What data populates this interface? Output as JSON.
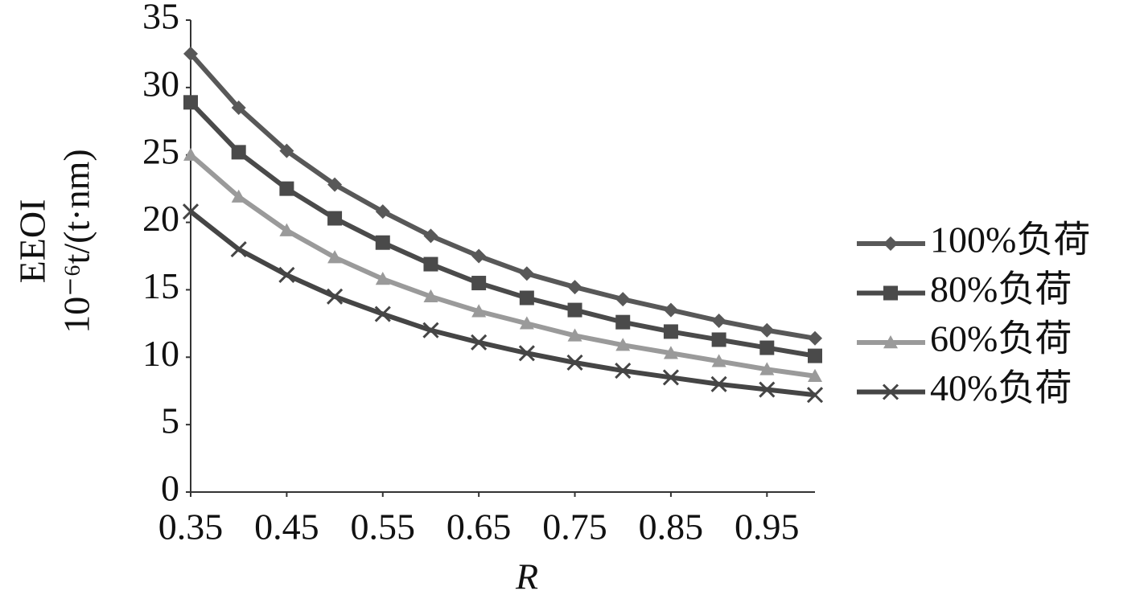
{
  "chart_data": {
    "type": "line",
    "y_label": "EEOI",
    "y_unit": "10⁻⁶t/(t·nm)",
    "x_label": "R",
    "x": [
      0.35,
      0.4,
      0.45,
      0.5,
      0.55,
      0.6,
      0.65,
      0.7,
      0.75,
      0.8,
      0.85,
      0.9,
      0.95,
      1.0
    ],
    "series": [
      {
        "name": "100%负荷",
        "color": "#585858",
        "marker": "diamond",
        "values": [
          32.5,
          28.5,
          25.3,
          22.8,
          20.8,
          19.0,
          17.5,
          16.2,
          15.2,
          14.3,
          13.5,
          12.7,
          12.0,
          11.4
        ]
      },
      {
        "name": "80%负荷",
        "color": "#4a4a4a",
        "marker": "square",
        "values": [
          28.9,
          25.2,
          22.5,
          20.3,
          18.5,
          16.9,
          15.5,
          14.4,
          13.5,
          12.6,
          11.9,
          11.3,
          10.7,
          10.1
        ]
      },
      {
        "name": "60%负荷",
        "color": "#9a9a9a",
        "marker": "triangle",
        "values": [
          25.0,
          21.9,
          19.4,
          17.4,
          15.8,
          14.5,
          13.4,
          12.5,
          11.6,
          10.9,
          10.3,
          9.7,
          9.1,
          8.6
        ]
      },
      {
        "name": "40%负荷",
        "color": "#454545",
        "marker": "x",
        "values": [
          20.8,
          18.0,
          16.1,
          14.5,
          13.2,
          12.0,
          11.1,
          10.3,
          9.6,
          9.0,
          8.5,
          8.0,
          7.6,
          7.2
        ]
      }
    ],
    "xlim": [
      0.35,
      1.0
    ],
    "xticks": [
      0.35,
      0.45,
      0.55,
      0.65,
      0.75,
      0.85,
      0.95
    ],
    "ylim": [
      0,
      35
    ],
    "yticks": [
      0,
      5,
      10,
      15,
      20,
      25,
      30,
      35
    ],
    "legend": "right"
  }
}
